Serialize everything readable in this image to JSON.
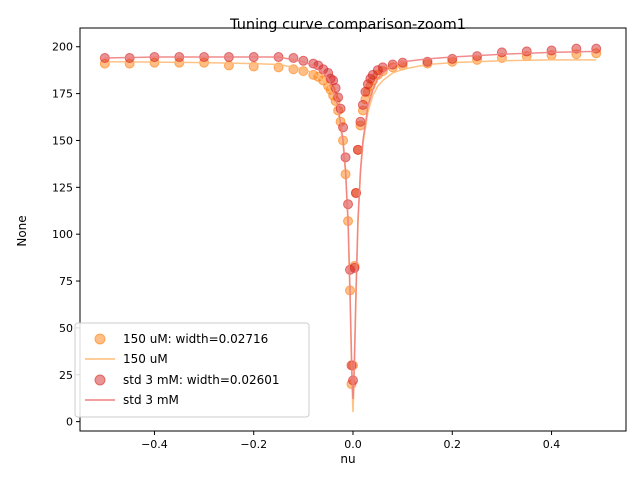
{
  "chart_data": {
    "type": "scatter",
    "title": "Tuning curve comparison-zoom1",
    "xlabel": "nu",
    "ylabel": "None",
    "xlim": [
      -0.55,
      0.55
    ],
    "ylim": [
      -5,
      210
    ],
    "xticks": [
      -0.4,
      -0.2,
      0.0,
      0.2,
      0.4
    ],
    "xtick_labels": [
      "−0.4",
      "−0.2",
      "0.0",
      "0.2",
      "0.4"
    ],
    "yticks": [
      0,
      25,
      50,
      75,
      100,
      125,
      150,
      175,
      200
    ],
    "ytick_labels": [
      "0",
      "25",
      "50",
      "75",
      "100",
      "125",
      "150",
      "175",
      "200"
    ],
    "grid": false,
    "legend_position": "lower-left",
    "series": [
      {
        "name": "150 uM: width=0.02716",
        "kind": "points",
        "color": "#ff7f0e",
        "x": [
          -0.5,
          -0.45,
          -0.4,
          -0.35,
          -0.3,
          -0.25,
          -0.2,
          -0.15,
          -0.12,
          -0.1,
          -0.08,
          -0.07,
          -0.06,
          -0.05,
          -0.045,
          -0.04,
          -0.035,
          -0.03,
          -0.025,
          -0.02,
          -0.015,
          -0.01,
          -0.006,
          -0.003,
          0.0,
          0.003,
          0.006,
          0.01,
          0.015,
          0.02,
          0.025,
          0.03,
          0.035,
          0.04,
          0.05,
          0.06,
          0.08,
          0.1,
          0.15,
          0.2,
          0.25,
          0.3,
          0.35,
          0.4,
          0.45,
          0.49
        ],
        "y": [
          191,
          191,
          191.5,
          191.5,
          191.5,
          190,
          189.5,
          189,
          188,
          187,
          185,
          184,
          182,
          179,
          177,
          174,
          171,
          166,
          160,
          150,
          132,
          107,
          70,
          20,
          30,
          83,
          122,
          145,
          158,
          166,
          172,
          176,
          179,
          182,
          185,
          187,
          189,
          190,
          191,
          192,
          193,
          194,
          195,
          195.5,
          196,
          196.5
        ]
      },
      {
        "name": "150 uM",
        "kind": "line",
        "color": "#ffbb78",
        "x": [
          -0.5,
          -0.4,
          -0.3,
          -0.2,
          -0.15,
          -0.1,
          -0.08,
          -0.06,
          -0.05,
          -0.04,
          -0.03,
          -0.02,
          -0.015,
          -0.01,
          -0.006,
          -0.003,
          -0.001,
          0.0,
          0.001,
          0.003,
          0.006,
          0.01,
          0.015,
          0.02,
          0.03,
          0.04,
          0.05,
          0.06,
          0.08,
          0.1,
          0.15,
          0.2,
          0.3,
          0.4,
          0.49
        ],
        "y": [
          192,
          191.8,
          191.5,
          191,
          190.5,
          188,
          186,
          182,
          179,
          174,
          165,
          148,
          132,
          105,
          65,
          30,
          12,
          5,
          12,
          30,
          65,
          105,
          132,
          148,
          165,
          174,
          179,
          182,
          186,
          188,
          190.5,
          191.5,
          192.5,
          193,
          193
        ]
      },
      {
        "name": "std 3 mM: width=0.02601",
        "kind": "points",
        "color": "#d62728",
        "x": [
          -0.5,
          -0.45,
          -0.4,
          -0.35,
          -0.3,
          -0.25,
          -0.2,
          -0.15,
          -0.12,
          -0.1,
          -0.08,
          -0.07,
          -0.06,
          -0.05,
          -0.045,
          -0.04,
          -0.035,
          -0.03,
          -0.025,
          -0.02,
          -0.015,
          -0.01,
          -0.006,
          -0.003,
          0.0,
          0.003,
          0.006,
          0.01,
          0.015,
          0.02,
          0.025,
          0.03,
          0.035,
          0.04,
          0.05,
          0.06,
          0.08,
          0.1,
          0.15,
          0.2,
          0.25,
          0.3,
          0.35,
          0.4,
          0.45,
          0.49
        ],
        "y": [
          194,
          194,
          194.5,
          194.5,
          194.5,
          194.5,
          194.5,
          194.5,
          194,
          192.5,
          191,
          190,
          188,
          186,
          183,
          182,
          178,
          173,
          167,
          157,
          141,
          116,
          81,
          30,
          22,
          82,
          122,
          145,
          160,
          169,
          176,
          180,
          183,
          185,
          187.5,
          189,
          190.5,
          191.5,
          192,
          193.5,
          195,
          197,
          197.5,
          198,
          199,
          199
        ]
      },
      {
        "name": "std 3 mM",
        "kind": "line",
        "color": "#f08080",
        "x": [
          -0.5,
          -0.4,
          -0.3,
          -0.2,
          -0.15,
          -0.1,
          -0.08,
          -0.06,
          -0.05,
          -0.04,
          -0.03,
          -0.02,
          -0.015,
          -0.01,
          -0.006,
          -0.003,
          -0.001,
          0.0,
          0.001,
          0.003,
          0.006,
          0.01,
          0.015,
          0.02,
          0.03,
          0.04,
          0.05,
          0.06,
          0.08,
          0.1,
          0.15,
          0.2,
          0.3,
          0.4,
          0.49
        ],
        "y": [
          194,
          194.5,
          194.5,
          194.5,
          194.5,
          192,
          190,
          186,
          183,
          177,
          168,
          150,
          134,
          108,
          70,
          35,
          17,
          12,
          17,
          35,
          70,
          108,
          134,
          150,
          168,
          177,
          183,
          186,
          190,
          192,
          193.5,
          194.5,
          196,
          197,
          197.5
        ]
      }
    ]
  }
}
